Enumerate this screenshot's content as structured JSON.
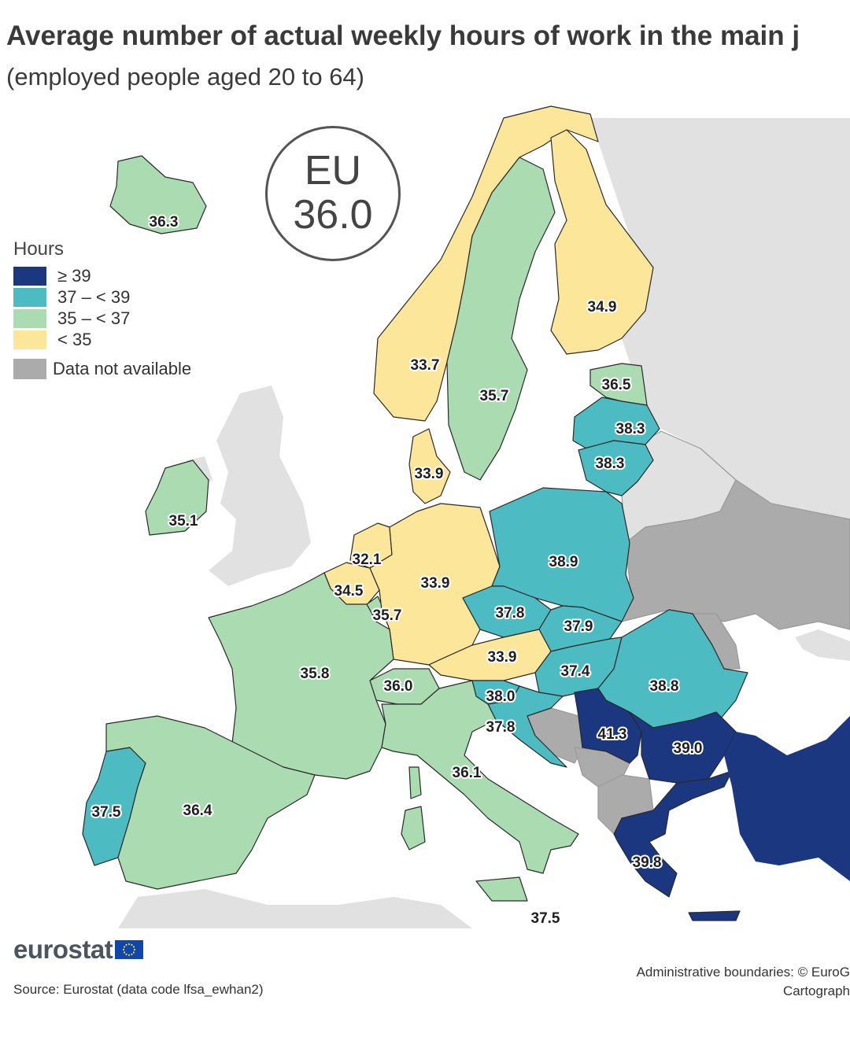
{
  "title": "Average number of actual weekly hours of work in the main j",
  "subtitle": "(employed people aged 20 to 64)",
  "eu_badge": {
    "label": "EU",
    "value": "36.0"
  },
  "legend": {
    "title": "Hours",
    "items": [
      {
        "label": "≥ 39",
        "color": "#1a377f"
      },
      {
        "label": "37 – < 39",
        "color": "#4dbcc2"
      },
      {
        "label": "35 – < 37",
        "color": "#abdcb1"
      },
      {
        "label": "< 35",
        "color": "#fbe699"
      }
    ],
    "not_available": {
      "label": "Data not available",
      "color": "#ababab"
    }
  },
  "colors": {
    "non_eu": "#e1e1e1",
    "not_available": "#ababab",
    "sea": "#ffffff",
    "border": "#2a2a2a"
  },
  "chart_data": {
    "type": "choropleth",
    "unit": "Hours",
    "eu_average": 36.0,
    "values": [
      {
        "country": "Iceland",
        "value": "36.3"
      },
      {
        "country": "Norway",
        "value": "33.7"
      },
      {
        "country": "Sweden",
        "value": "35.7"
      },
      {
        "country": "Finland",
        "value": "34.9"
      },
      {
        "country": "Estonia",
        "value": "36.5"
      },
      {
        "country": "Latvia",
        "value": "38.3"
      },
      {
        "country": "Lithuania",
        "value": "38.3"
      },
      {
        "country": "Denmark",
        "value": "33.9"
      },
      {
        "country": "Ireland",
        "value": "35.1"
      },
      {
        "country": "Netherlands",
        "value": "32.1"
      },
      {
        "country": "Belgium",
        "value": "34.5"
      },
      {
        "country": "Luxembourg",
        "value": "35.7"
      },
      {
        "country": "Germany",
        "value": "33.9"
      },
      {
        "country": "Poland",
        "value": "38.9"
      },
      {
        "country": "Czechia",
        "value": "37.8"
      },
      {
        "country": "Slovakia",
        "value": "37.9"
      },
      {
        "country": "Austria",
        "value": "33.9"
      },
      {
        "country": "Hungary",
        "value": "37.4"
      },
      {
        "country": "Romania",
        "value": "38.8"
      },
      {
        "country": "Switzerland",
        "value": "36.0"
      },
      {
        "country": "France",
        "value": "35.8"
      },
      {
        "country": "Slovenia",
        "value": "38.0"
      },
      {
        "country": "Croatia",
        "value": "37.8"
      },
      {
        "country": "Serbia",
        "value": "41.3"
      },
      {
        "country": "Bulgaria",
        "value": "39.0"
      },
      {
        "country": "Italy",
        "value": "36.1"
      },
      {
        "country": "Portugal",
        "value": "37.5"
      },
      {
        "country": "Spain",
        "value": "36.4"
      },
      {
        "country": "Greece",
        "value": "39.8"
      },
      {
        "country": "Malta",
        "value": "37.5"
      }
    ]
  },
  "footer": {
    "logo_text": "eurostat",
    "source": "Source: Eurostat (data code lfsa_ewhan2)",
    "admin_line1": "Administrative boundaries: © EuroG",
    "admin_line2": "Cartograph"
  }
}
